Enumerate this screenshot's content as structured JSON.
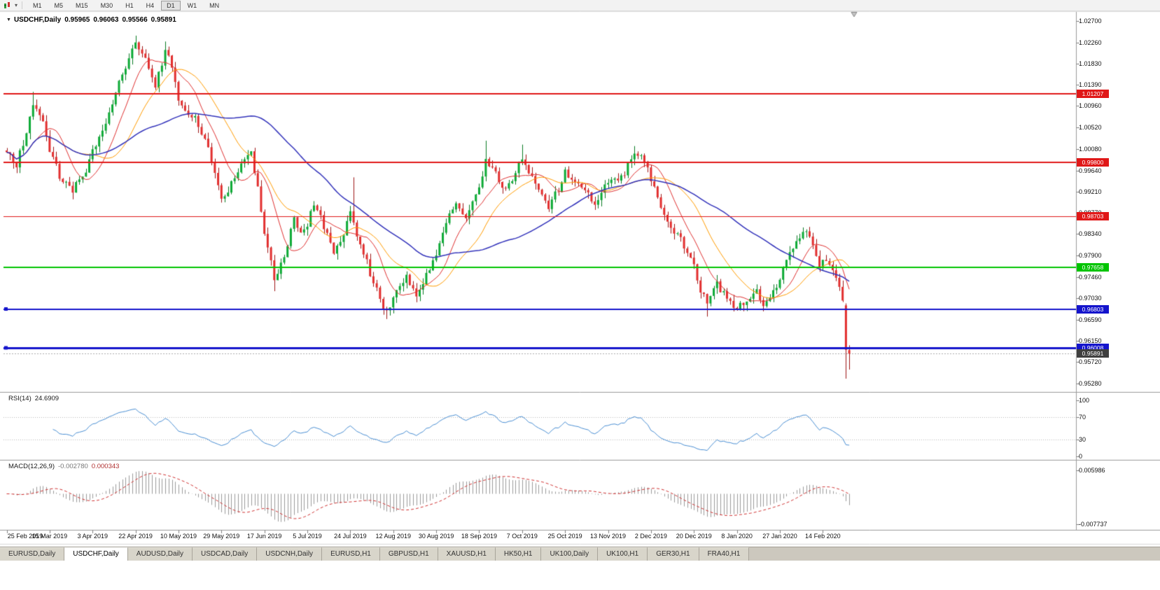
{
  "app": {
    "name": "MetaTrader chart window"
  },
  "toolbar": {
    "timeframes": [
      {
        "label": "M1",
        "active": false
      },
      {
        "label": "M5",
        "active": false
      },
      {
        "label": "M15",
        "active": false
      },
      {
        "label": "M30",
        "active": false
      },
      {
        "label": "H1",
        "active": false
      },
      {
        "label": "H4",
        "active": false
      },
      {
        "label": "D1",
        "active": true
      },
      {
        "label": "W1",
        "active": false
      },
      {
        "label": "MN",
        "active": false
      }
    ]
  },
  "chart": {
    "header": {
      "symbol": "USDCHF,Daily",
      "open": "0.95965",
      "high": "0.96063",
      "low": "0.95566",
      "close": "0.95891"
    },
    "price_axis_ticks": [
      "1.02700",
      "1.02260",
      "1.01830",
      "1.01390",
      "1.00960",
      "1.00520",
      "1.00080",
      "0.99640",
      "0.99210",
      "0.98770",
      "0.98340",
      "0.97900",
      "0.97460",
      "0.97030",
      "0.96590",
      "0.96150",
      "0.95720",
      "0.95280"
    ]
  },
  "rsi": {
    "title": "RSI(14)",
    "value": "24.6909",
    "axis_ticks": [
      "100",
      "70",
      "30",
      "0"
    ],
    "levels": [
      70,
      30
    ],
    "color": "#4a8fd4"
  },
  "macd": {
    "title": "MACD(12,26,9)",
    "main_value": "-0.002780",
    "signal_value": "0.000343",
    "tick_top": "0.005986",
    "tick_bottom": "-0.007737",
    "hist_color": "#9a9a9a",
    "signal_color": "#d03030"
  },
  "chart_data": {
    "type": "candlestick",
    "symbol": "USDCHF",
    "period": "Daily",
    "bar_count": 256,
    "bars_per_x_label": 13,
    "x_labels": [
      "25 Feb 2019",
      "15 Mar 2019",
      "3 Apr 2019",
      "22 Apr 2019",
      "10 May 2019",
      "29 May 2019",
      "17 Jun 2019",
      "5 Jul 2019",
      "24 Jul 2019",
      "12 Aug 2019",
      "30 Aug 2019",
      "18 Sep 2019",
      "7 Oct 2019",
      "25 Oct 2019",
      "13 Nov 2019",
      "2 Dec 2019",
      "20 Dec 2019",
      "8 Jan 2020",
      "27 Jan 2020",
      "14 Feb 2020"
    ],
    "y_axis": {
      "max": 1.027,
      "min": 0.9528
    },
    "price_keypoints": [
      [
        0,
        1.0005
      ],
      [
        3,
        0.9978
      ],
      [
        6,
        1.004
      ],
      [
        8,
        1.01
      ],
      [
        11,
        1.006
      ],
      [
        13,
        1.001
      ],
      [
        16,
        0.995
      ],
      [
        20,
        0.9922
      ],
      [
        24,
        0.9965
      ],
      [
        26,
        1.0
      ],
      [
        30,
        1.0055
      ],
      [
        34,
        1.014
      ],
      [
        37,
        1.0195
      ],
      [
        39,
        1.0225
      ],
      [
        42,
        1.019
      ],
      [
        45,
        1.0135
      ],
      [
        48,
        1.021
      ],
      [
        50,
        1.018
      ],
      [
        52,
        1.0105
      ],
      [
        55,
        1.0085
      ],
      [
        58,
        1.006
      ],
      [
        61,
        1.001
      ],
      [
        63,
        0.9955
      ],
      [
        65,
        0.99
      ],
      [
        68,
        0.994
      ],
      [
        71,
        0.9975
      ],
      [
        74,
        1.0
      ],
      [
        76,
        0.993
      ],
      [
        78,
        0.983
      ],
      [
        81,
        0.9745
      ],
      [
        84,
        0.978
      ],
      [
        87,
        0.987
      ],
      [
        89,
        0.983
      ],
      [
        91,
        0.9855
      ],
      [
        93,
        0.9895
      ],
      [
        96,
        0.985
      ],
      [
        99,
        0.98
      ],
      [
        102,
        0.983
      ],
      [
        104,
        0.988
      ],
      [
        107,
        0.9815
      ],
      [
        110,
        0.9755
      ],
      [
        113,
        0.97
      ],
      [
        115,
        0.9672
      ],
      [
        118,
        0.9715
      ],
      [
        121,
        0.9745
      ],
      [
        124,
        0.97
      ],
      [
        127,
        0.9755
      ],
      [
        130,
        0.979
      ],
      [
        133,
        0.9855
      ],
      [
        136,
        0.9895
      ],
      [
        139,
        0.987
      ],
      [
        141,
        0.99
      ],
      [
        143,
        0.993
      ],
      [
        145,
        0.9985
      ],
      [
        148,
        0.996
      ],
      [
        151,
        0.992
      ],
      [
        154,
        0.9965
      ],
      [
        156,
        0.999
      ],
      [
        159,
        0.995
      ],
      [
        162,
        0.991
      ],
      [
        164,
        0.989
      ],
      [
        167,
        0.9925
      ],
      [
        169,
        0.996
      ],
      [
        172,
        0.994
      ],
      [
        175,
        0.992
      ],
      [
        178,
        0.99
      ],
      [
        181,
        0.993
      ],
      [
        184,
        0.9945
      ],
      [
        187,
        0.996
      ],
      [
        190,
        0.9995
      ],
      [
        193,
        0.9985
      ],
      [
        195,
        0.994
      ],
      [
        198,
        0.989
      ],
      [
        201,
        0.985
      ],
      [
        204,
        0.982
      ],
      [
        207,
        0.979
      ],
      [
        210,
        0.972
      ],
      [
        212,
        0.969
      ],
      [
        215,
        0.973
      ],
      [
        218,
        0.97
      ],
      [
        221,
        0.9685
      ],
      [
        224,
        0.9695
      ],
      [
        227,
        0.9715
      ],
      [
        229,
        0.968
      ],
      [
        231,
        0.97
      ],
      [
        234,
        0.9745
      ],
      [
        237,
        0.979
      ],
      [
        240,
        0.983
      ],
      [
        242,
        0.984
      ],
      [
        244,
        0.9805
      ],
      [
        246,
        0.977
      ],
      [
        248,
        0.978
      ],
      [
        250,
        0.976
      ],
      [
        252,
        0.972
      ],
      [
        253,
        0.969
      ],
      [
        254,
        0.9597
      ],
      [
        255,
        0.9589
      ]
    ],
    "wick_overrides": [
      {
        "i": 8,
        "h": 1.0125
      },
      {
        "i": 20,
        "l": 0.9905
      },
      {
        "i": 39,
        "h": 1.024
      },
      {
        "i": 48,
        "h": 1.0228
      },
      {
        "i": 81,
        "l": 0.9717
      },
      {
        "i": 105,
        "h": 0.995
      },
      {
        "i": 115,
        "l": 0.966
      },
      {
        "i": 145,
        "h": 1.0025
      },
      {
        "i": 156,
        "h": 1.0017
      },
      {
        "i": 190,
        "h": 1.0014
      },
      {
        "i": 212,
        "l": 0.9665
      }
    ],
    "last_bars": [
      {
        "o": 0.9688,
        "h": 0.9692,
        "l": 0.9538,
        "c": 0.9597
      },
      {
        "o": 0.95965,
        "h": 0.96063,
        "l": 0.95566,
        "c": 0.95891
      }
    ],
    "candle_colors": {
      "up": "#0caa35",
      "up_border": "#077a22",
      "down": "#e22e2e",
      "down_border": "#9e1414"
    },
    "moving_averages": [
      {
        "period": 10,
        "color": "#e03030"
      },
      {
        "period": 21,
        "color": "#ff9c00"
      },
      {
        "period": 50,
        "color": "#3333bb"
      }
    ],
    "horizontal_lines": [
      {
        "price": 1.01207,
        "label": "1.01207",
        "color": "#e01818",
        "width": 2,
        "handles": false
      },
      {
        "price": 0.998,
        "label": "0.99800",
        "color": "#e01818",
        "width": 2,
        "handles": false
      },
      {
        "price": 0.98703,
        "label": "0.98703",
        "color": "#e01818",
        "width": 1,
        "handles": false
      },
      {
        "price": 0.97658,
        "label": "0.97658",
        "color": "#00c400",
        "width": 2,
        "handles": false
      },
      {
        "price": 0.96803,
        "label": "0.96803",
        "color": "#1414cc",
        "width": 2,
        "handles": true
      },
      {
        "price": 0.96008,
        "label": "0.96008",
        "color": "#1414cc",
        "width": 3,
        "handles": true
      }
    ],
    "current_bid": {
      "value": 0.95891,
      "label": "0.95891",
      "tag_bg": "#3f3f3f"
    },
    "rsi": {
      "period": 14,
      "current": 24.6909
    },
    "macd": {
      "fast": 12,
      "slow": 26,
      "signal_period": 9,
      "current_main": -0.00278,
      "current_signal": 0.000343
    }
  },
  "tabs": [
    {
      "label": "EURUSD,Daily",
      "active": false
    },
    {
      "label": "USDCHF,Daily",
      "active": true
    },
    {
      "label": "AUDUSD,Daily",
      "active": false
    },
    {
      "label": "USDCAD,Daily",
      "active": false
    },
    {
      "label": "USDCNH,Daily",
      "active": false
    },
    {
      "label": "EURUSD,H1",
      "active": false
    },
    {
      "label": "GBPUSD,H1",
      "active": false
    },
    {
      "label": "XAUUSD,H1",
      "active": false
    },
    {
      "label": "HK50,H1",
      "active": false
    },
    {
      "label": "UK100,Daily",
      "active": false
    },
    {
      "label": "UK100,H1",
      "active": false
    },
    {
      "label": "GER30,H1",
      "active": false
    },
    {
      "label": "FRA40,H1",
      "active": false
    }
  ]
}
